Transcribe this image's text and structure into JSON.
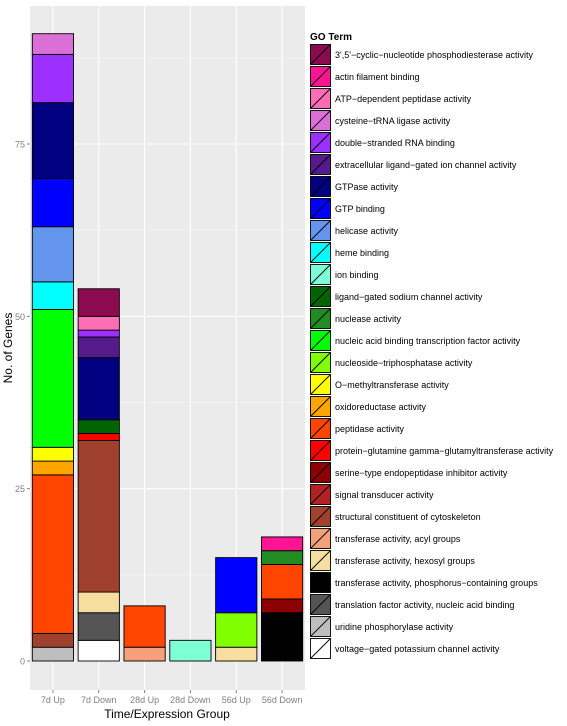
{
  "chart_data": {
    "type": "bar",
    "stacked": true,
    "xlabel": "Time/Expression Group",
    "ylabel": "No. of Genes",
    "ylim": [
      -1.5,
      95
    ],
    "yticks": [
      0,
      25,
      50,
      75
    ],
    "grid": true,
    "legend_position": "right",
    "legend_title": "GO Term",
    "categories": [
      "7d Up",
      "7d Down",
      "28d Up",
      "28d Down",
      "56d Up",
      "56d Down"
    ],
    "terms": [
      {
        "name": "3',5'−cyclic−nucleotide phosphodiesterase activity",
        "color": "#8B0A50"
      },
      {
        "name": "actin filament binding",
        "color": "#FF1493"
      },
      {
        "name": "ATP−dependent peptidase activity",
        "color": "#FF6EB4"
      },
      {
        "name": "cysteine−tRNA ligase activity",
        "color": "#DA70D6"
      },
      {
        "name": "double−stranded RNA binding",
        "color": "#9B30FF"
      },
      {
        "name": "extracellular ligand−gated ion channel activity",
        "color": "#551A8B"
      },
      {
        "name": "GTPase activity",
        "color": "#000080"
      },
      {
        "name": "GTP binding",
        "color": "#0000FF"
      },
      {
        "name": "helicase activity",
        "color": "#6495ED"
      },
      {
        "name": "heme binding",
        "color": "#00FFFF"
      },
      {
        "name": "ion binding",
        "color": "#7FFFD4"
      },
      {
        "name": "ligand−gated sodium channel activity",
        "color": "#006400"
      },
      {
        "name": "nuclease activity",
        "color": "#228B22"
      },
      {
        "name": "nucleic acid binding transcription factor activity",
        "color": "#00FF00"
      },
      {
        "name": "nucleoside−triphosphatase activity",
        "color": "#7FFF00"
      },
      {
        "name": "O−methyltransferase activity",
        "color": "#FFFF00"
      },
      {
        "name": "oxidoreductase activity",
        "color": "#FFA500"
      },
      {
        "name": "peptidase activity",
        "color": "#FF4500"
      },
      {
        "name": "protein−glutamine gamma−glutamyltransferase activity",
        "color": "#FF0000"
      },
      {
        "name": "serine−type endopeptidase inhibitor activity",
        "color": "#8B0000"
      },
      {
        "name": "signal transducer activity",
        "color": "#B22222"
      },
      {
        "name": "structural constituent of cytoskeleton",
        "color": "#A0412D"
      },
      {
        "name": "transferase activity, acyl groups",
        "color": "#F4A07A"
      },
      {
        "name": "transferase activity, hexosyl groups",
        "color": "#F5DEA0"
      },
      {
        "name": "transferase activity, phosphorus−containing groups",
        "color": "#000000"
      },
      {
        "name": "translation factor activity, nucleic acid binding",
        "color": "#555555"
      },
      {
        "name": "uridine phosphorylase activity",
        "color": "#BEBEBE"
      },
      {
        "name": "voltage−gated potassium channel activity",
        "color": "#FFFFFF"
      }
    ],
    "stacks": [
      {
        "category": "7d Up",
        "segments": [
          {
            "term": "uridine phosphorylase activity",
            "value": 2
          },
          {
            "term": "structural constituent of cytoskeleton",
            "value": 2
          },
          {
            "term": "peptidase activity",
            "value": 23
          },
          {
            "term": "oxidoreductase activity",
            "value": 2
          },
          {
            "term": "O−methyltransferase activity",
            "value": 2
          },
          {
            "term": "nucleic acid binding transcription factor activity",
            "value": 20
          },
          {
            "term": "heme binding",
            "value": 4
          },
          {
            "term": "helicase activity",
            "value": 8
          },
          {
            "term": "GTP binding",
            "value": 7
          },
          {
            "term": "GTPase activity",
            "value": 11
          },
          {
            "term": "double−stranded RNA binding",
            "value": 7
          },
          {
            "term": "cysteine−tRNA ligase activity",
            "value": 3
          }
        ]
      },
      {
        "category": "7d Down",
        "segments": [
          {
            "term": "voltage−gated potassium channel activity",
            "value": 3
          },
          {
            "term": "translation factor activity, nucleic acid binding",
            "value": 4
          },
          {
            "term": "transferase activity, hexosyl groups",
            "value": 3
          },
          {
            "term": "structural constituent of cytoskeleton",
            "value": 22
          },
          {
            "term": "protein−glutamine gamma−glutamyltransferase activity",
            "value": 1
          },
          {
            "term": "ligand−gated sodium channel activity",
            "value": 2
          },
          {
            "term": "GTPase activity",
            "value": 9
          },
          {
            "term": "extracellular ligand−gated ion channel activity",
            "value": 3
          },
          {
            "term": "double−stranded RNA binding",
            "value": 1
          },
          {
            "term": "ATP−dependent peptidase activity",
            "value": 2
          },
          {
            "term": "3',5'−cyclic−nucleotide phosphodiesterase activity",
            "value": 4
          }
        ]
      },
      {
        "category": "28d Up",
        "segments": [
          {
            "term": "transferase activity, acyl groups",
            "value": 2
          },
          {
            "term": "peptidase activity",
            "value": 6
          }
        ]
      },
      {
        "category": "28d Down",
        "segments": [
          {
            "term": "ion binding",
            "value": 3
          }
        ]
      },
      {
        "category": "56d Up",
        "segments": [
          {
            "term": "transferase activity, hexosyl groups",
            "value": 2
          },
          {
            "term": "nucleoside−triphosphatase activity",
            "value": 5
          },
          {
            "term": "GTP binding",
            "value": 8
          }
        ]
      },
      {
        "category": "56d Down",
        "segments": [
          {
            "term": "transferase activity, phosphorus−containing groups",
            "value": 7
          },
          {
            "term": "serine−type endopeptidase inhibitor activity",
            "value": 2
          },
          {
            "term": "peptidase activity",
            "value": 5
          },
          {
            "term": "nuclease activity",
            "value": 2
          },
          {
            "term": "actin filament binding",
            "value": 2
          }
        ]
      }
    ]
  }
}
